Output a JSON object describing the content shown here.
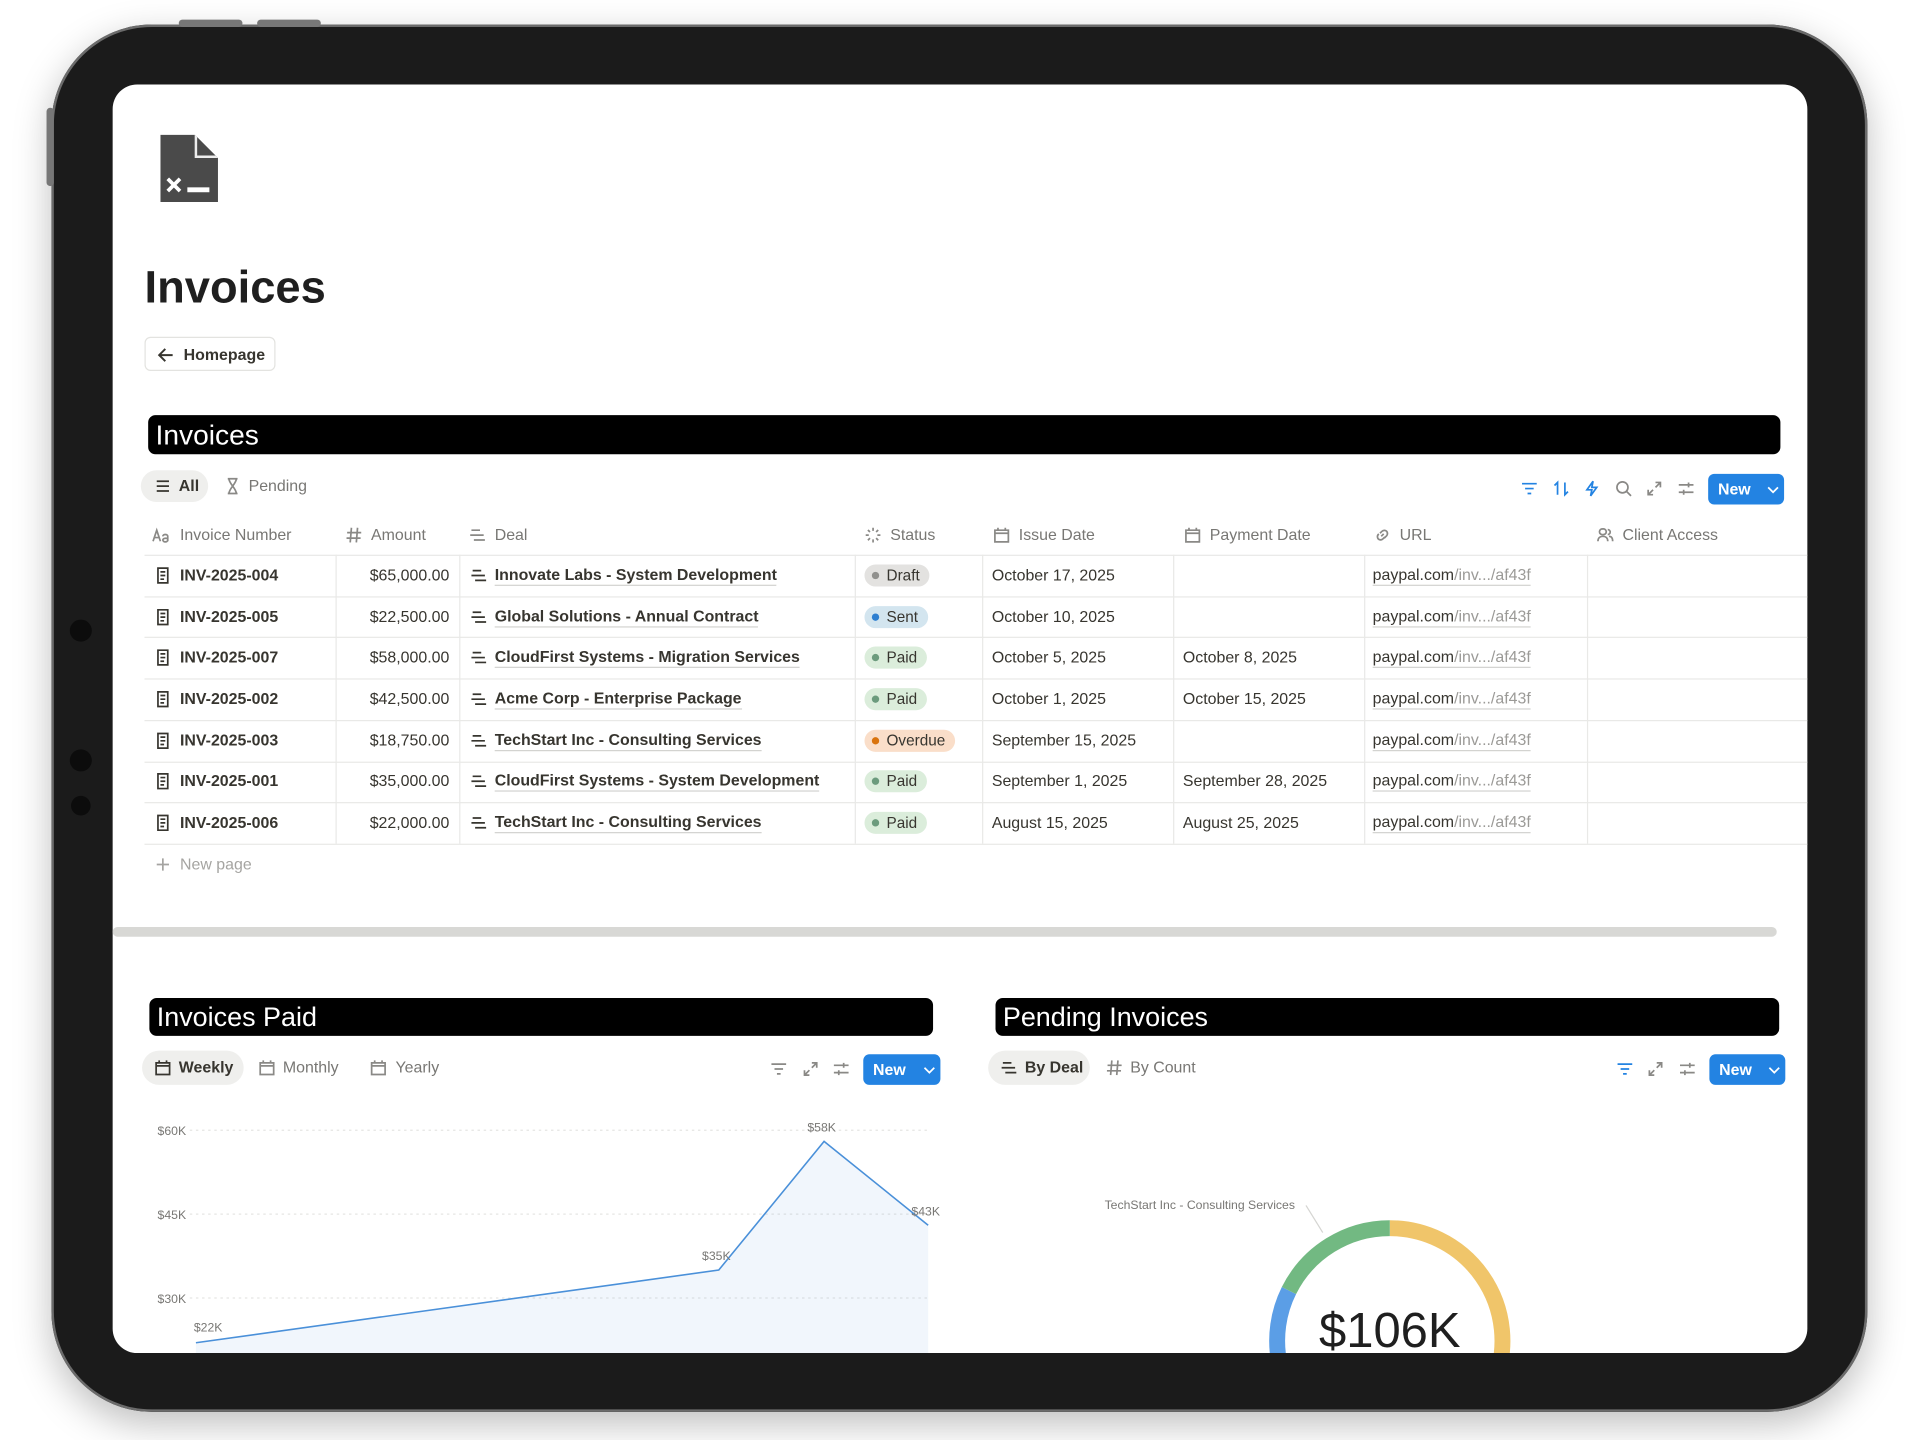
{
  "page": {
    "title": "Invoices",
    "back_link": "Homepage"
  },
  "invoices_view": {
    "heading": "Invoices",
    "tabs": [
      "All",
      "Pending"
    ],
    "new_button": "New",
    "new_page": "New page",
    "columns": [
      "Invoice Number",
      "Amount",
      "Deal",
      "Status",
      "Issue Date",
      "Payment Date",
      "URL",
      "Client Access"
    ],
    "rows": [
      {
        "number": "INV-2025-004",
        "amount": "$65,000.00",
        "deal": "Innovate Labs - System Development",
        "status": "Draft",
        "issue_date": "October 17, 2025",
        "url_domain": "paypal.com",
        "url_path": "/inv.../af43f"
      },
      {
        "number": "INV-2025-005",
        "amount": "$22,500.00",
        "deal": "Global Solutions - Annual Contract",
        "status": "Sent",
        "issue_date": "October 10, 2025",
        "url_domain": "paypal.com",
        "url_path": "/inv.../af43f"
      },
      {
        "number": "INV-2025-007",
        "amount": "$58,000.00",
        "deal": "CloudFirst Systems - Migration Services",
        "status": "Paid",
        "issue_date": "October 5, 2025",
        "payment_date": "October 8, 2025",
        "url_domain": "paypal.com",
        "url_path": "/inv.../af43f"
      },
      {
        "number": "INV-2025-002",
        "amount": "$42,500.00",
        "deal": "Acme Corp - Enterprise Package",
        "status": "Paid",
        "issue_date": "October 1, 2025",
        "payment_date": "October 15, 2025",
        "url_domain": "paypal.com",
        "url_path": "/inv.../af43f"
      },
      {
        "number": "INV-2025-003",
        "amount": "$18,750.00",
        "deal": "TechStart Inc - Consulting Services",
        "status": "Overdue",
        "issue_date": "September 15, 2025",
        "url_domain": "paypal.com",
        "url_path": "/inv.../af43f"
      },
      {
        "number": "INV-2025-001",
        "amount": "$35,000.00",
        "deal": "CloudFirst Systems - System Development",
        "status": "Paid",
        "issue_date": "September 1, 2025",
        "payment_date": "September 28, 2025",
        "url_domain": "paypal.com",
        "url_path": "/inv.../af43f"
      },
      {
        "number": "INV-2025-006",
        "amount": "$22,000.00",
        "deal": "TechStart Inc - Consulting Services",
        "status": "Paid",
        "issue_date": "August 15, 2025",
        "payment_date": "August 25, 2025",
        "url_domain": "paypal.com",
        "url_path": "/inv.../af43f"
      }
    ],
    "status_styles": {
      "Draft": {
        "bg": "#e3e2e0",
        "dot": "#91918e"
      },
      "Sent": {
        "bg": "#d3e5ef",
        "dot": "#2e7fd0"
      },
      "Paid": {
        "bg": "#dbeddb",
        "dot": "#6c9b7d"
      },
      "Overdue": {
        "bg": "#fadec9",
        "dot": "#d9730d"
      }
    }
  },
  "paid_view": {
    "heading": "Invoices Paid",
    "tabs": [
      "Weekly",
      "Monthly",
      "Yearly"
    ],
    "new_button": "New",
    "chart_data": {
      "type": "line",
      "values": [
        22000,
        35000,
        58000,
        43000
      ],
      "value_labels": [
        "$22K",
        "$35K",
        "$58K",
        "$43K"
      ],
      "color": "#4a90d9",
      "ylim": [
        20000,
        60000
      ],
      "yticks": [
        {
          "value": 30000,
          "label": "$30K"
        },
        {
          "value": 45000,
          "label": "$45K"
        },
        {
          "value": 60000,
          "label": "$60K"
        }
      ],
      "grid": true
    }
  },
  "pending_view": {
    "heading": "Pending Invoices",
    "tabs": [
      "By Deal",
      "By Count"
    ],
    "new_button": "New",
    "chart_data": {
      "type": "donut",
      "categories": [
        null,
        null,
        "TechStart Inc - Consulting Services"
      ],
      "values": [
        65000,
        22500,
        18750
      ],
      "colors": [
        "#f0c56a",
        "#5b9ee6",
        "#72b982"
      ],
      "center_label": "$106K"
    }
  }
}
